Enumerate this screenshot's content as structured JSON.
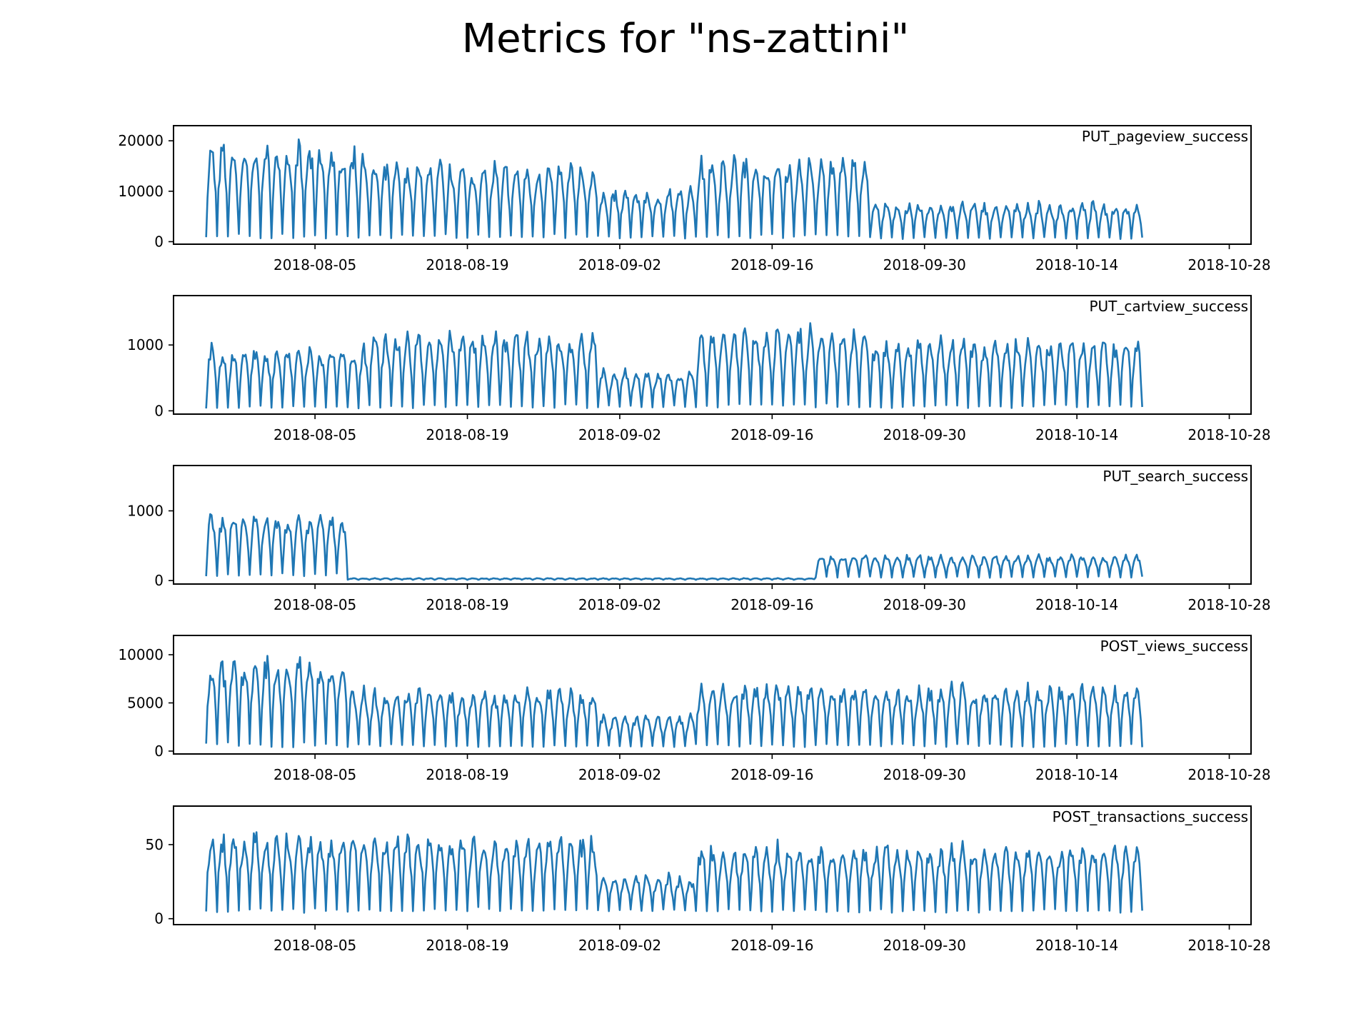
{
  "figure": {
    "title": "Metrics for \"ns-zattini\"",
    "line_color": "#1f77b4"
  },
  "chart_data": [
    {
      "type": "line",
      "legend": "PUT_pageview_success",
      "legend_loc": "upper right",
      "x_ticks": [
        "2018-08-05",
        "2018-08-19",
        "2018-09-02",
        "2018-09-16",
        "2018-09-30",
        "2018-10-14",
        "2018-10-28"
      ],
      "x_range": [
        "2018-07-23",
        "2018-10-30"
      ],
      "y_ticks": [
        0,
        10000,
        20000
      ],
      "ylim": [
        -500,
        23000
      ],
      "x_start": "2018-07-26",
      "x_end": "2018-10-20",
      "segments": [
        {
          "from": "2018-07-26",
          "to": "2018-08-10",
          "peak": 20000,
          "trough": 600
        },
        {
          "from": "2018-08-10",
          "to": "2018-08-17",
          "peak": 16500,
          "trough": 600
        },
        {
          "from": "2018-08-17",
          "to": "2018-08-31",
          "peak": 16000,
          "trough": 700
        },
        {
          "from": "2018-08-31",
          "to": "2018-09-09",
          "peak": 11000,
          "trough": 600
        },
        {
          "from": "2018-09-09",
          "to": "2018-09-25",
          "peak": 17500,
          "trough": 700
        },
        {
          "from": "2018-09-25",
          "to": "2018-10-20",
          "peak": 8000,
          "trough": 500
        }
      ]
    },
    {
      "type": "line",
      "legend": "PUT_cartview_success",
      "legend_loc": "upper right",
      "x_ticks": [
        "2018-08-05",
        "2018-08-19",
        "2018-09-02",
        "2018-09-16",
        "2018-09-30",
        "2018-10-14",
        "2018-10-28"
      ],
      "x_range": [
        "2018-07-23",
        "2018-10-30"
      ],
      "y_ticks": [
        0,
        1000
      ],
      "ylim": [
        -50,
        1750
      ],
      "x_start": "2018-07-26",
      "x_end": "2018-10-20",
      "segments": [
        {
          "from": "2018-07-26",
          "to": "2018-08-10",
          "peak": 1000,
          "trough": 30
        },
        {
          "from": "2018-08-10",
          "to": "2018-08-31",
          "peak": 1250,
          "trough": 40
        },
        {
          "from": "2018-08-31",
          "to": "2018-09-09",
          "peak": 650,
          "trough": 50
        },
        {
          "from": "2018-09-09",
          "to": "2018-09-25",
          "peak": 1300,
          "trough": 50
        },
        {
          "from": "2018-09-25",
          "to": "2018-10-20",
          "peak": 1150,
          "trough": 40
        }
      ]
    },
    {
      "type": "line",
      "legend": "PUT_search_success",
      "legend_loc": "upper right",
      "x_ticks": [
        "2018-08-05",
        "2018-08-19",
        "2018-09-02",
        "2018-09-16",
        "2018-09-30",
        "2018-10-14",
        "2018-10-28"
      ],
      "x_range": [
        "2018-07-23",
        "2018-10-30"
      ],
      "y_ticks": [
        0,
        1000
      ],
      "ylim": [
        -50,
        1650
      ],
      "x_start": "2018-07-26",
      "x_end": "2018-10-20",
      "segments": [
        {
          "from": "2018-07-26",
          "to": "2018-08-08",
          "peak": 1000,
          "trough": 60
        },
        {
          "from": "2018-08-08",
          "to": "2018-09-20",
          "peak": 35,
          "trough": 10
        },
        {
          "from": "2018-09-20",
          "to": "2018-10-20",
          "peak": 380,
          "trough": 40
        }
      ]
    },
    {
      "type": "line",
      "legend": "POST_views_success",
      "legend_loc": "upper right",
      "x_ticks": [
        "2018-08-05",
        "2018-08-19",
        "2018-09-02",
        "2018-09-16",
        "2018-09-30",
        "2018-10-14",
        "2018-10-28"
      ],
      "x_range": [
        "2018-07-23",
        "2018-10-30"
      ],
      "y_ticks": [
        0,
        5000,
        10000
      ],
      "ylim": [
        -300,
        12000
      ],
      "x_start": "2018-07-26",
      "x_end": "2018-10-20",
      "segments": [
        {
          "from": "2018-07-26",
          "to": "2018-08-08",
          "peak": 10000,
          "trough": 400
        },
        {
          "from": "2018-08-08",
          "to": "2018-08-31",
          "peak": 6800,
          "trough": 400
        },
        {
          "from": "2018-08-31",
          "to": "2018-09-09",
          "peak": 4000,
          "trough": 400
        },
        {
          "from": "2018-09-09",
          "to": "2018-10-20",
          "peak": 7200,
          "trough": 400
        }
      ]
    },
    {
      "type": "line",
      "legend": "POST_transactions_success",
      "legend_loc": "upper right",
      "x_ticks": [
        "2018-08-05",
        "2018-08-19",
        "2018-09-02",
        "2018-09-16",
        "2018-09-30",
        "2018-10-14",
        "2018-10-28"
      ],
      "x_range": [
        "2018-07-23",
        "2018-10-30"
      ],
      "y_ticks": [
        0,
        50
      ],
      "ylim": [
        -4,
        76
      ],
      "x_start": "2018-07-26",
      "x_end": "2018-10-20",
      "segments": [
        {
          "from": "2018-07-26",
          "to": "2018-08-10",
          "peak": 60,
          "trough": 4
        },
        {
          "from": "2018-08-10",
          "to": "2018-08-31",
          "peak": 58,
          "trough": 5
        },
        {
          "from": "2018-08-31",
          "to": "2018-09-09",
          "peak": 30,
          "trough": 5
        },
        {
          "from": "2018-09-09",
          "to": "2018-10-20",
          "peak": 52,
          "trough": 4
        }
      ]
    }
  ]
}
